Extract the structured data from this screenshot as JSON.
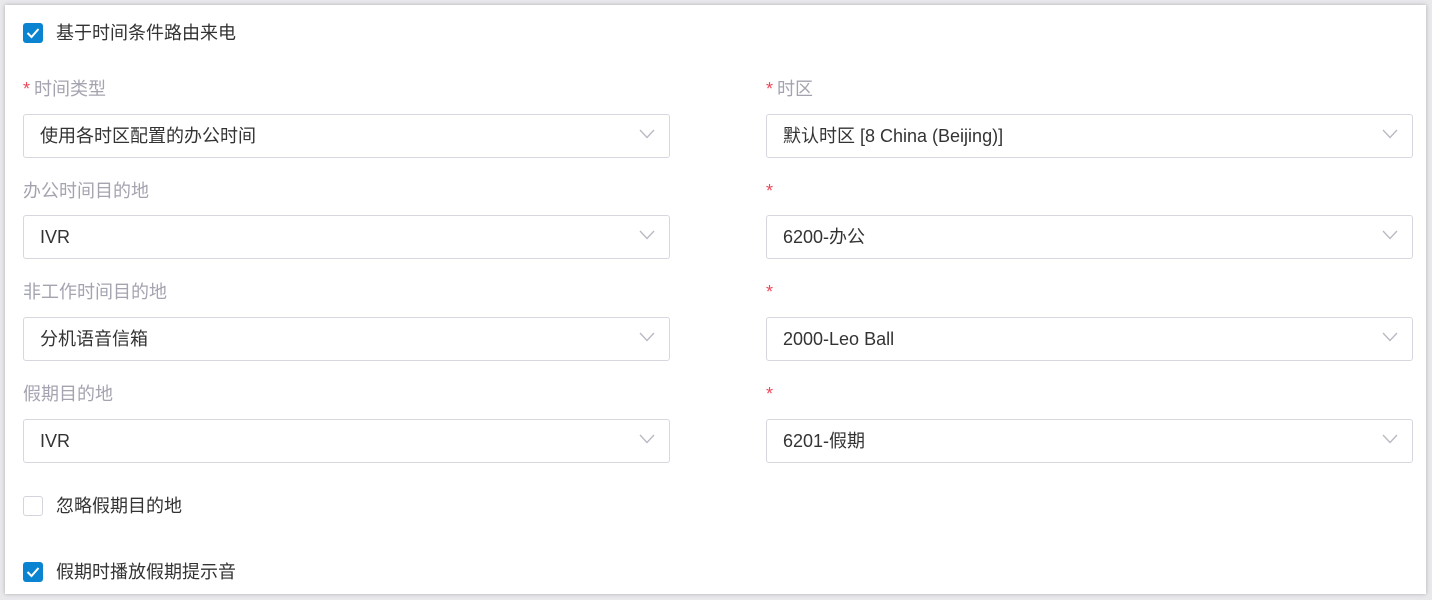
{
  "route_by_time": {
    "label": "基于时间条件路由来电",
    "checked": true
  },
  "fields": [
    {
      "label": "时间类型",
      "required": true,
      "value": "使用各时区配置的办公时间"
    },
    {
      "label": "时区",
      "required": true,
      "value": "默认时区 [8 China (Beijing)]"
    },
    {
      "label": "办公时间目的地",
      "required": false,
      "value": "IVR"
    },
    {
      "label": "",
      "required": true,
      "value": "6200-办公"
    },
    {
      "label": "非工作时间目的地",
      "required": false,
      "value": "分机语音信箱"
    },
    {
      "label": "",
      "required": true,
      "value": "2000-Leo Ball"
    },
    {
      "label": "假期目的地",
      "required": false,
      "value": "IVR"
    },
    {
      "label": "",
      "required": true,
      "value": "6201-假期"
    }
  ],
  "ignore_holiday": {
    "label": "忽略假期目的地",
    "checked": false
  },
  "play_holiday_prompt": {
    "label": "假期时播放假期提示音",
    "checked": true
  },
  "required_mark": "*",
  "icons": {
    "checkbox": "check-icon",
    "select": "chevron-down-icon"
  },
  "colors": {
    "accent": "#0a84d0",
    "required": "#f0475a"
  }
}
